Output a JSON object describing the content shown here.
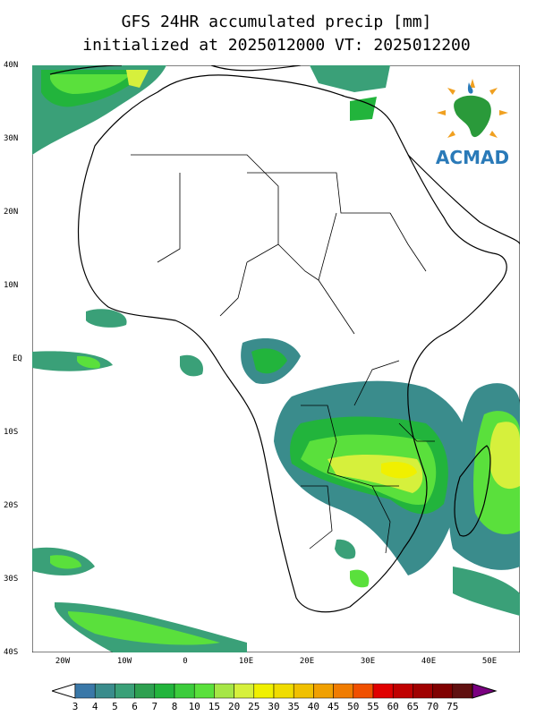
{
  "title_line1": "GFS 24HR accumulated precip [mm]",
  "title_line2": "initialized at 2025012000 VT: 2025012200",
  "logo": {
    "text": "ACMAD",
    "icon": "africa-sun-logo-icon"
  },
  "lat_labels": [
    "40N",
    "30N",
    "20N",
    "10N",
    "EQ",
    "10S",
    "20S",
    "30S",
    "40S"
  ],
  "lon_labels": [
    "20W",
    "10W",
    "0",
    "10E",
    "20E",
    "30E",
    "40E",
    "50E"
  ],
  "colorbar": {
    "labels": [
      "3",
      "4",
      "5",
      "6",
      "7",
      "8",
      "10",
      "15",
      "20",
      "25",
      "30",
      "35",
      "40",
      "45",
      "50",
      "55",
      "60",
      "65",
      "70",
      "75"
    ],
    "colors": [
      "#3a78a8",
      "#3a8c8c",
      "#3aa078",
      "#2ea050",
      "#22b43c",
      "#3ccc3c",
      "#5ae03c",
      "#a6e646",
      "#d6f03c",
      "#f0f000",
      "#f0dc00",
      "#f0c000",
      "#f0a000",
      "#f07c00",
      "#f05000",
      "#e00000",
      "#c00000",
      "#a00000",
      "#800000",
      "#601010",
      "#7a0080"
    ]
  }
}
